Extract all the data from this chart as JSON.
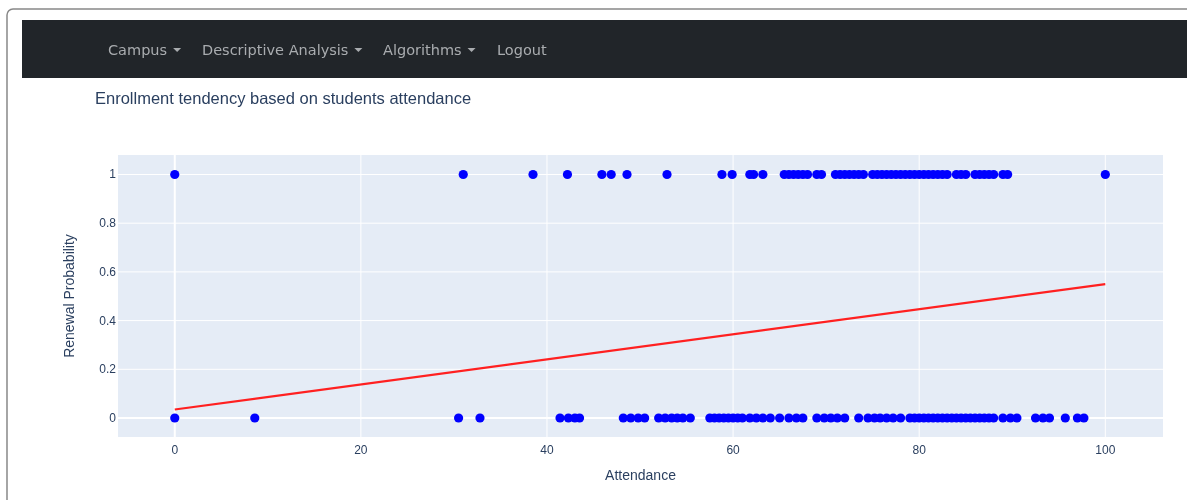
{
  "chart_data": {
    "type": "scatter",
    "title": "Enrollment tendency based on students attendance",
    "xlabel": "Attendance",
    "ylabel": "Renewal Probability",
    "annotations": [
      "Campus",
      "Descriptive Analysis",
      "Algorithms",
      "Logout"
    ],
    "xlim": [
      -6.1,
      106.2
    ],
    "ylim": [
      -0.078,
      1.08
    ],
    "xticks": [
      0,
      20,
      40,
      60,
      80,
      100
    ],
    "yticks": [
      0,
      0.2,
      0.4,
      0.6,
      0.8,
      1
    ],
    "grid": true,
    "marker": "circle",
    "series": [
      {
        "color": "#0000ff",
        "x": [
          0,
          31,
          38.5,
          42.2,
          45.9,
          46.9,
          48.6,
          52.9,
          58.8,
          59.9,
          61.8,
          62.2,
          63.2,
          65.5,
          66,
          66.5,
          67,
          67.5,
          68,
          69,
          69.5,
          71,
          71.5,
          72,
          72.5,
          73,
          73.5,
          74,
          75,
          75.5,
          76,
          76.5,
          77,
          77.5,
          78,
          78.5,
          79,
          79.5,
          80,
          80.5,
          81,
          81.5,
          82,
          82.5,
          83,
          84,
          84.5,
          85,
          86,
          86.5,
          87,
          87.5,
          88,
          89,
          89.5,
          100
        ],
        "values": [
          1,
          1,
          1,
          1,
          1,
          1,
          1,
          1,
          1,
          1,
          1,
          1,
          1,
          1,
          1,
          1,
          1,
          1,
          1,
          1,
          1,
          1,
          1,
          1,
          1,
          1,
          1,
          1,
          1,
          1,
          1,
          1,
          1,
          1,
          1,
          1,
          1,
          1,
          1,
          1,
          1,
          1,
          1,
          1,
          1,
          1,
          1,
          1,
          1,
          1,
          1,
          1,
          1,
          1,
          1,
          1
        ]
      },
      {
        "color": "#0000ff",
        "x": [
          0,
          8.6,
          30.5,
          32.8,
          41.4,
          42.3,
          43,
          43.5,
          48.2,
          49,
          49.8,
          50.5,
          52,
          52.7,
          53.4,
          54,
          54.6,
          55.4,
          57.5,
          58,
          58.5,
          59,
          59.5,
          60,
          60.5,
          61,
          61.8,
          62.5,
          63.2,
          64,
          65,
          66,
          66.8,
          67.5,
          69,
          69.8,
          70.5,
          71.2,
          72,
          73.5,
          74.5,
          75.2,
          75.8,
          76.5,
          77.2,
          78,
          79,
          79.5,
          80,
          80.5,
          81,
          81.5,
          82,
          82.5,
          83,
          83.5,
          84,
          84.5,
          85,
          85.5,
          86,
          86.5,
          87,
          87.5,
          88,
          89,
          89.8,
          90.5,
          92.5,
          93.3,
          94,
          95.7,
          97,
          97.7
        ],
        "values": [
          0,
          0,
          0,
          0,
          0,
          0,
          0,
          0,
          0,
          0,
          0,
          0,
          0,
          0,
          0,
          0,
          0,
          0,
          0,
          0,
          0,
          0,
          0,
          0,
          0,
          0,
          0,
          0,
          0,
          0,
          0,
          0,
          0,
          0,
          0,
          0,
          0,
          0,
          0,
          0,
          0,
          0,
          0,
          0,
          0,
          0,
          0,
          0,
          0,
          0,
          0,
          0,
          0,
          0,
          0,
          0,
          0,
          0,
          0,
          0,
          0,
          0,
          0,
          0,
          0,
          0,
          0,
          0,
          0,
          0,
          0,
          0,
          0,
          0
        ]
      },
      {
        "type": "line",
        "color": "#ff2020",
        "x": [
          0,
          100
        ],
        "values": [
          0.035,
          0.55
        ],
        "marker": "none",
        "line_style": "solid"
      }
    ]
  }
}
